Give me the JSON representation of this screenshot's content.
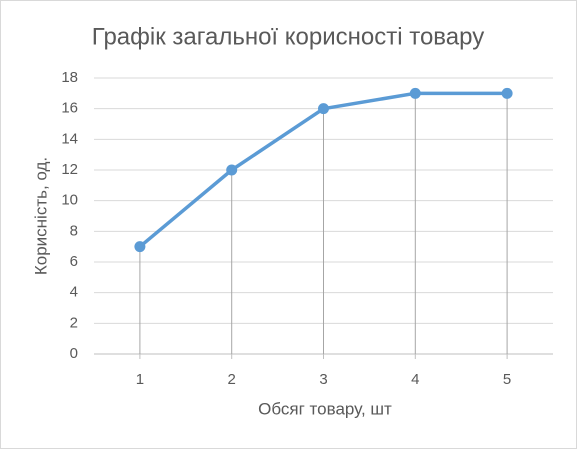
{
  "chart_data": {
    "type": "line",
    "title": "Графік загальної корисності товару",
    "x_label": "Обсяг товару, шт",
    "y_label": "Корисність, од.",
    "categories": [
      "1",
      "2",
      "3",
      "4",
      "5"
    ],
    "series": [
      {
        "name": "Корисність",
        "color": "#5b9bd5",
        "values": [
          7,
          12,
          16,
          17,
          17
        ]
      }
    ],
    "ylim": [
      0,
      18
    ],
    "yticks": [
      0,
      2,
      4,
      6,
      8,
      10,
      12,
      14,
      16,
      18
    ],
    "grid": true,
    "drop_lines": true
  }
}
